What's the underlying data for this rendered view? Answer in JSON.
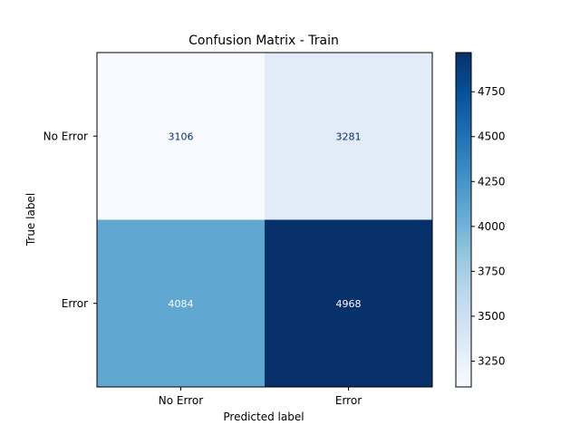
{
  "chart_data": {
    "type": "heatmap",
    "title": "Confusion Matrix - Train",
    "xlabel": "Predicted label",
    "ylabel": "True label",
    "x_categories": [
      "No Error",
      "Error"
    ],
    "y_categories": [
      "No Error",
      "Error"
    ],
    "values": [
      [
        3106,
        3281
      ],
      [
        4084,
        4968
      ]
    ],
    "colormap": "Blues",
    "colorbar": {
      "vmin": 3106,
      "vmax": 4968,
      "ticks": [
        3250,
        3500,
        3750,
        4000,
        4250,
        4500,
        4750
      ]
    },
    "cell_colors": [
      [
        "#f7fbff",
        "#e1ecf8"
      ],
      [
        "#60a7d2",
        "#08306b"
      ]
    ],
    "cell_label_colors": [
      [
        "#08306b",
        "#08306b"
      ],
      [
        "#f7fbff",
        "#f7fbff"
      ]
    ],
    "colorbar_stops": [
      "#f7fbff",
      "#deebf7",
      "#c6dbef",
      "#9ecae1",
      "#6baed6",
      "#4292c6",
      "#2171b5",
      "#08519c",
      "#08306b"
    ]
  }
}
